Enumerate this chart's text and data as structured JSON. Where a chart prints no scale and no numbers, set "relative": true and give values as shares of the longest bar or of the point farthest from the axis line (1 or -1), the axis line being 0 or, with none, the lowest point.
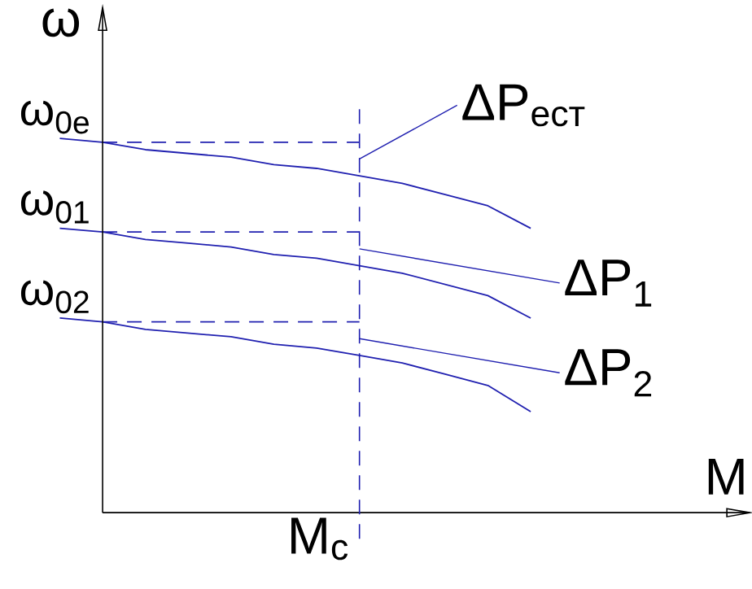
{
  "chart_data": {
    "type": "line",
    "relative": true,
    "xlabel": "M",
    "ylabel": "ω",
    "categories": [
      null,
      null,
      null,
      null,
      null,
      null,
      null,
      null,
      null,
      null,
      null,
      null
    ],
    "series": [
      {
        "color": "#2020b0",
        "values": [
          1,
          0.99,
          0.97,
          0.96,
          0.95,
          0.93,
          0.92,
          0.9,
          0.88,
          0.85,
          0.82,
          0.76
        ]
      },
      {
        "color": "#2020b0",
        "values": [
          0.76,
          0.75,
          0.73,
          0.72,
          0.71,
          0.69,
          0.68,
          0.66,
          0.64,
          0.61,
          0.58,
          0.52
        ]
      },
      {
        "color": "#2020b0",
        "values": [
          0.52,
          0.51,
          0.49,
          0.48,
          0.47,
          0.45,
          0.44,
          0.42,
          0.4,
          0.37,
          0.34,
          0.27
        ]
      },
      {
        "color": "#2020b0",
        "line_style": "dashed",
        "values": [
          null,
          0.99,
          0.99,
          0.99,
          0.99,
          0.99,
          0.99,
          0.99,
          null,
          null,
          null,
          null
        ]
      },
      {
        "color": "#2020b0",
        "line_style": "dashed",
        "values": [
          null,
          0.75,
          0.75,
          0.75,
          0.75,
          0.75,
          0.75,
          0.75,
          null,
          null,
          null,
          null
        ]
      },
      {
        "color": "#2020b0",
        "line_style": "dashed",
        "values": [
          null,
          0.51,
          0.51,
          0.51,
          0.51,
          0.51,
          0.51,
          0.51,
          null,
          null,
          null,
          null
        ]
      }
    ],
    "annotations": [
      "ω$_{0e}$",
      "ω$_{01}$",
      "ω$_{02}$",
      "ΔP$_{ест}$",
      "ΔP$_{1}$",
      "ΔP$_{2}$",
      "M$_{c}$"
    ]
  }
}
